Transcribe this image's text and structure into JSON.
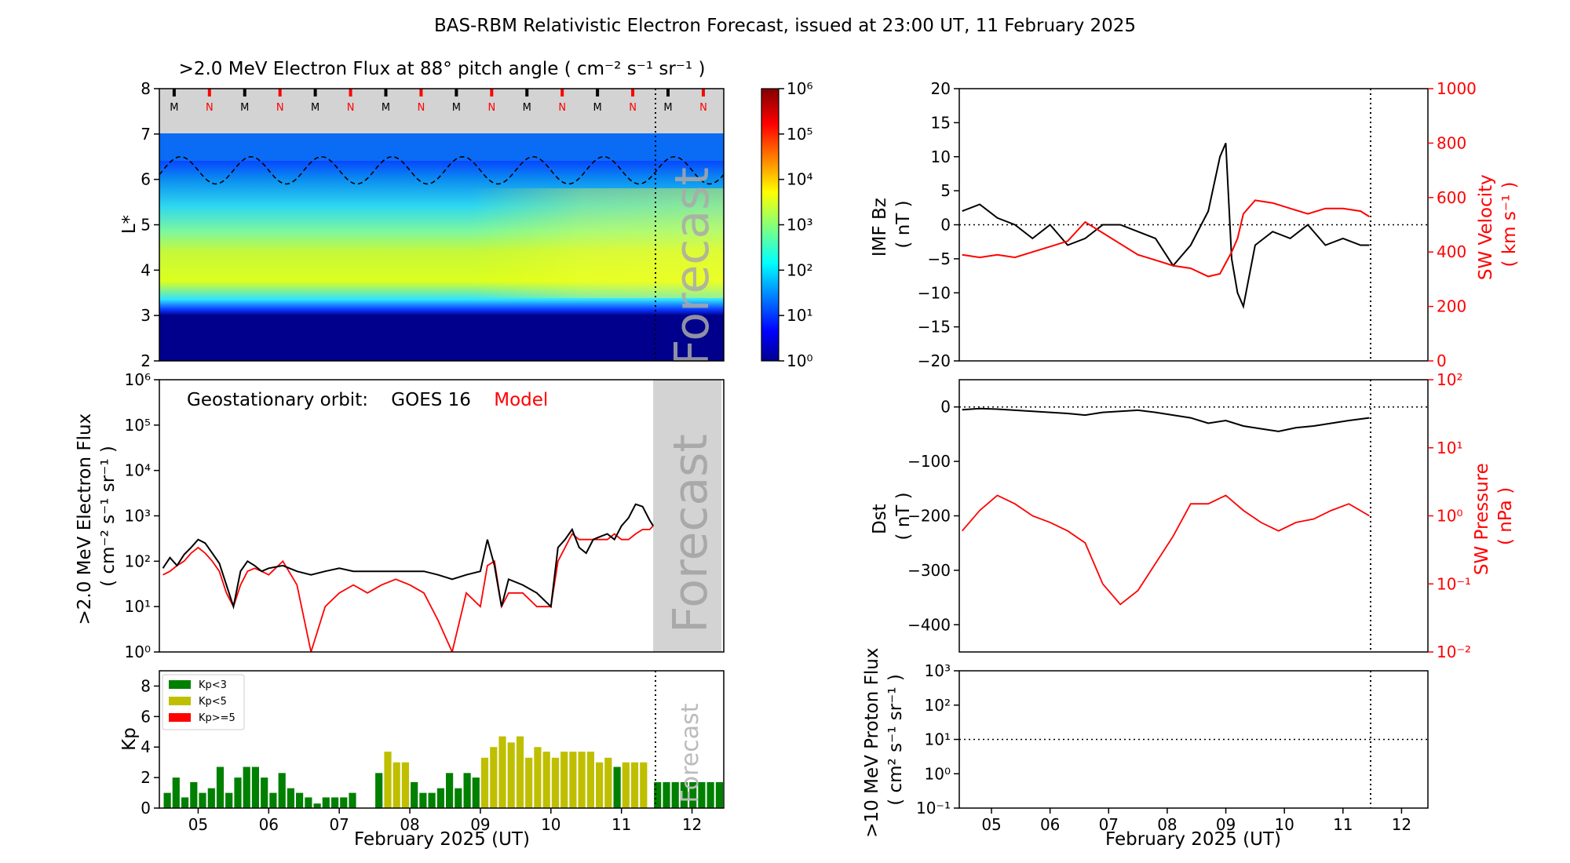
{
  "suptitle": "BAS-RBM Relativistic Electron Forecast, issued at 23:00 UT, 11 February 2025",
  "colors": {
    "observed": "#000000",
    "model": "#ff0000",
    "forecast_shade": "#d3d3d3",
    "kp_low": "#008000",
    "kp_mid": "#bfbf00",
    "kp_high": "#ff0000",
    "cmap": "jet"
  },
  "x_ticks": [
    "05",
    "06",
    "07",
    "08",
    "09",
    "10",
    "11",
    "12"
  ],
  "x_range_days": [
    4.45,
    12.45
  ],
  "issue_time_day": 11.45,
  "forecast_label": "Forecast",
  "heatmap": {
    "title": ">2.0 MeV Electron Flux at 88° pitch angle ( cm⁻² s⁻¹ sr⁻¹ )",
    "ylabel": "L*",
    "yticks": [
      "2",
      "3",
      "4",
      "5",
      "6",
      "7",
      "8"
    ],
    "ylim": [
      2,
      8
    ],
    "colorbar_ticks": [
      "10⁰",
      "10¹",
      "10²",
      "10³",
      "10⁴",
      "10⁵",
      "10⁶"
    ],
    "colorbar_range_log": [
      0,
      6
    ],
    "mn_markers": [
      "M",
      "N",
      "M",
      "N",
      "M",
      "N",
      "M",
      "N",
      "M",
      "N",
      "M",
      "N",
      "M",
      "N",
      "M",
      "N"
    ],
    "geo_orbit_L_range": [
      5.9,
      6.5
    ]
  },
  "goes": {
    "ylabel_line1": ">2.0 MeV Electron Flux",
    "ylabel_line2": "( cm⁻² s⁻¹ sr⁻¹ )",
    "yticks": [
      "10⁰",
      "10¹",
      "10²",
      "10³",
      "10⁴",
      "10⁵",
      "10⁶"
    ],
    "ylim_log": [
      0,
      6
    ],
    "legend_prefix": "Geostationary orbit:",
    "legend_obs": "GOES 16",
    "legend_model": "Model"
  },
  "kp": {
    "ylabel": "Kp",
    "yticks": [
      "0",
      "2",
      "4",
      "6",
      "8"
    ],
    "ylim": [
      0,
      9
    ],
    "legend": [
      "Kp<3",
      "Kp<5",
      "Kp>=5"
    ]
  },
  "imf": {
    "ylabel_line1": "IMF Bz",
    "ylabel_line2": "( nT )",
    "yticks": [
      "−20",
      "−15",
      "−10",
      "−5",
      "0",
      "5",
      "10",
      "15",
      "20"
    ],
    "ylim": [
      -20,
      20
    ],
    "y2label_line1": "SW Velocity",
    "y2label_line2": "( km s⁻¹ )",
    "y2ticks": [
      "0",
      "200",
      "400",
      "600",
      "800",
      "1000"
    ],
    "y2lim": [
      0,
      1000
    ]
  },
  "dst": {
    "ylabel_line1": "Dst",
    "ylabel_line2": "( nT )",
    "yticks": [
      "0",
      "−100",
      "−200",
      "−300",
      "−400"
    ],
    "ylim": [
      -450,
      50
    ],
    "y2label_line1": "SW Pressure",
    "y2label_line2": "( nPa )",
    "y2ticks": [
      "10⁻²",
      "10⁻¹",
      "10⁰",
      "10¹",
      "10²"
    ],
    "y2lim_log": [
      -2,
      2
    ]
  },
  "proton": {
    "ylabel_line1": ">10 MeV Proton Flux",
    "ylabel_line2": "( cm² s⁻¹ sr⁻¹ )",
    "yticks": [
      "10⁻¹",
      "10⁰",
      "10¹",
      "10²",
      "10³"
    ],
    "ylim_log": [
      -1,
      3
    ],
    "threshold": 10
  },
  "xlabel": "February 2025 (UT)",
  "chart_data": [
    {
      "type": "line",
      "name": "goes_flux",
      "x_days": [
        4.5,
        4.6,
        4.7,
        4.8,
        4.9,
        5.0,
        5.1,
        5.2,
        5.3,
        5.4,
        5.5,
        5.6,
        5.7,
        5.8,
        5.9,
        6.0,
        6.2,
        6.4,
        6.6,
        6.8,
        7.0,
        7.2,
        7.4,
        7.6,
        7.8,
        8.0,
        8.2,
        8.4,
        8.6,
        8.8,
        9.0,
        9.1,
        9.2,
        9.3,
        9.4,
        9.6,
        9.8,
        10.0,
        10.1,
        10.2,
        10.3,
        10.4,
        10.5,
        10.6,
        10.7,
        10.8,
        10.9,
        11.0,
        11.1,
        11.2,
        11.3,
        11.4,
        11.45
      ],
      "series": [
        {
          "name": "GOES 16",
          "values": [
            70,
            120,
            80,
            140,
            200,
            300,
            250,
            150,
            90,
            30,
            10,
            60,
            100,
            80,
            60,
            70,
            80,
            60,
            50,
            60,
            70,
            60,
            60,
            60,
            60,
            60,
            60,
            50,
            40,
            50,
            60,
            300,
            80,
            10,
            40,
            30,
            20,
            10,
            200,
            300,
            500,
            200,
            150,
            300,
            350,
            400,
            300,
            600,
            900,
            1800,
            1600,
            800,
            600
          ]
        },
        {
          "name": "Model",
          "values": [
            50,
            60,
            80,
            100,
            150,
            200,
            150,
            100,
            60,
            20,
            10,
            30,
            60,
            70,
            60,
            50,
            100,
            30,
            1,
            10,
            20,
            30,
            20,
            30,
            40,
            30,
            20,
            5,
            1,
            20,
            10,
            80,
            100,
            10,
            20,
            20,
            10,
            10,
            100,
            200,
            400,
            300,
            300,
            300,
            300,
            300,
            400,
            300,
            300,
            400,
            500,
            500,
            600
          ]
        }
      ]
    },
    {
      "type": "bar",
      "name": "kp",
      "x_days": [
        4.5625,
        4.6875,
        4.8125,
        4.9375,
        5.0625,
        5.1875,
        5.3125,
        5.4375,
        5.5625,
        5.6875,
        5.8125,
        5.9375,
        6.0625,
        6.1875,
        6.3125,
        6.4375,
        6.5625,
        6.6875,
        6.8125,
        6.9375,
        7.0625,
        7.1875,
        7.3125,
        7.4375,
        7.5625,
        7.6875,
        7.8125,
        7.9375,
        8.0625,
        8.1875,
        8.3125,
        8.4375,
        8.5625,
        8.6875,
        8.8125,
        8.9375,
        9.0625,
        9.1875,
        9.3125,
        9.4375,
        9.5625,
        9.6875,
        9.8125,
        9.9375,
        10.0625,
        10.1875,
        10.3125,
        10.4375,
        10.5625,
        10.6875,
        10.8125,
        10.9375,
        11.0625,
        11.1875,
        11.3125
      ],
      "values": [
        1.0,
        2.0,
        0.7,
        1.7,
        1.0,
        1.3,
        2.7,
        1.0,
        2.0,
        2.7,
        2.7,
        2.0,
        1.0,
        2.3,
        1.3,
        1.0,
        0.7,
        0.3,
        0.7,
        0.7,
        0.7,
        1.0,
        0.0,
        0.0,
        2.3,
        3.7,
        3.0,
        3.0,
        1.7,
        1.0,
        1.0,
        1.3,
        2.3,
        1.3,
        2.3,
        2.0,
        3.3,
        4.0,
        4.7,
        4.3,
        4.7,
        3.3,
        4.0,
        3.7,
        3.3,
        3.7,
        3.7,
        3.7,
        3.7,
        3.0,
        3.3,
        2.7,
        3.0,
        3.0,
        3.0
      ],
      "forecast_value": 1.7,
      "forecast_range_days": [
        11.45,
        12.45
      ]
    },
    {
      "type": "line",
      "name": "imf_solar_wind",
      "x_days": [
        4.5,
        4.8,
        5.1,
        5.4,
        5.7,
        6.0,
        6.3,
        6.6,
        6.9,
        7.2,
        7.5,
        7.8,
        8.1,
        8.4,
        8.7,
        8.9,
        9.0,
        9.1,
        9.2,
        9.3,
        9.5,
        9.8,
        10.1,
        10.4,
        10.7,
        11.0,
        11.3,
        11.45
      ],
      "series": [
        {
          "name": "IMF Bz",
          "values": [
            2,
            3,
            1,
            0,
            -2,
            0,
            -3,
            -2,
            0,
            0,
            -1,
            -2,
            -6,
            -3,
            2,
            10,
            12,
            -5,
            -10,
            -12,
            -3,
            -1,
            -2,
            0,
            -3,
            -2,
            -3,
            -3
          ]
        },
        {
          "name": "SW Velocity",
          "values": [
            390,
            380,
            390,
            380,
            400,
            420,
            440,
            510,
            470,
            430,
            390,
            370,
            350,
            340,
            310,
            320,
            360,
            400,
            450,
            540,
            590,
            580,
            560,
            540,
            560,
            560,
            550,
            530
          ]
        }
      ]
    },
    {
      "type": "line",
      "name": "dst_pressure",
      "x_days": [
        4.5,
        4.8,
        5.1,
        5.4,
        5.7,
        6.0,
        6.3,
        6.6,
        6.9,
        7.2,
        7.5,
        7.8,
        8.1,
        8.4,
        8.7,
        9.0,
        9.3,
        9.6,
        9.9,
        10.2,
        10.5,
        10.8,
        11.1,
        11.45
      ],
      "series": [
        {
          "name": "Dst",
          "values": [
            -5,
            -3,
            -4,
            -6,
            -8,
            -10,
            -12,
            -15,
            -10,
            -8,
            -6,
            -10,
            -15,
            -20,
            -30,
            -25,
            -35,
            -40,
            -45,
            -38,
            -35,
            -30,
            -25,
            -20
          ]
        },
        {
          "name": "SW Pressure",
          "values": [
            0.6,
            1.2,
            2.0,
            1.5,
            1.0,
            0.8,
            0.6,
            0.4,
            0.1,
            0.05,
            0.08,
            0.2,
            0.5,
            1.5,
            1.5,
            2.0,
            1.2,
            0.8,
            0.6,
            0.8,
            0.9,
            1.2,
            1.5,
            1.0
          ]
        }
      ]
    }
  ]
}
